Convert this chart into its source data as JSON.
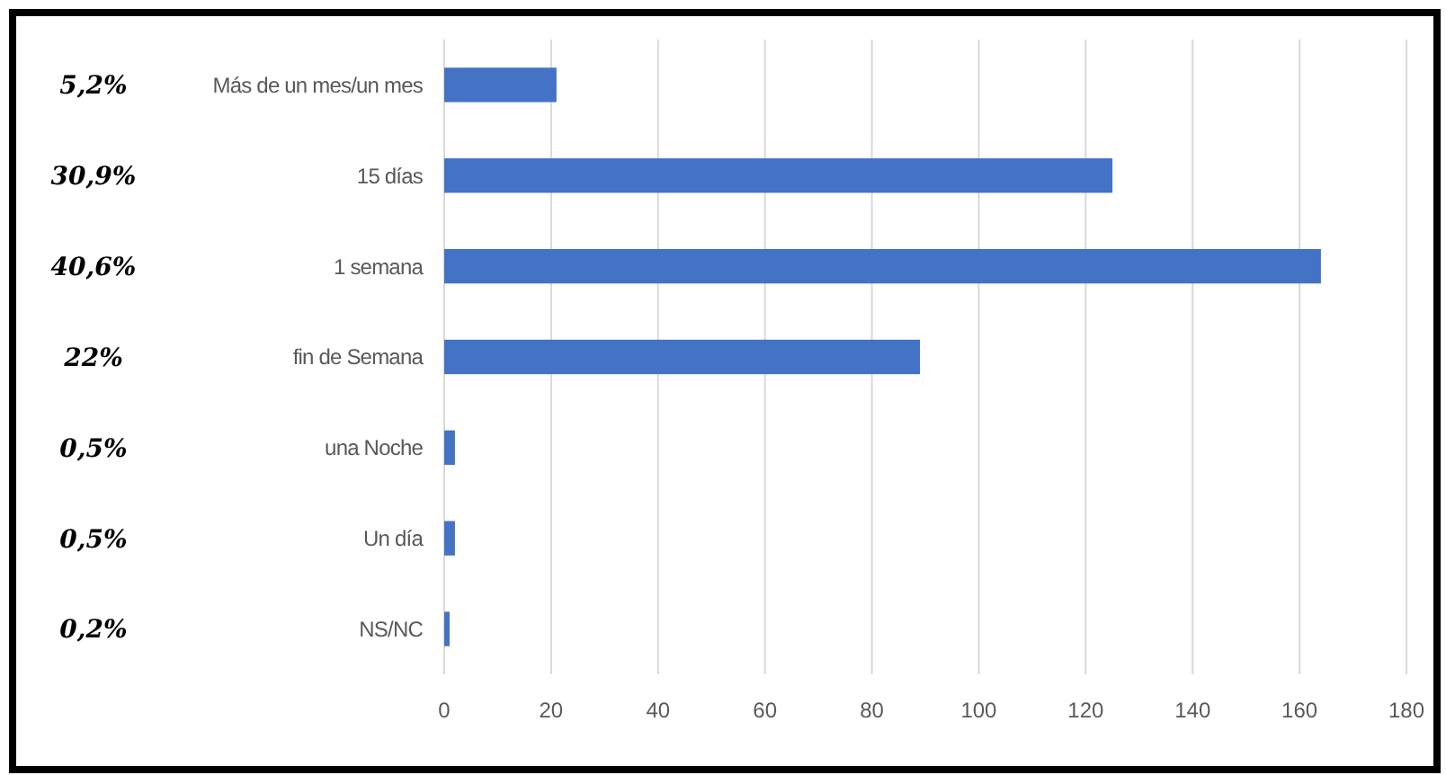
{
  "chart_data": {
    "type": "bar",
    "orientation": "horizontal",
    "categories": [
      "Más de un mes/un mes",
      "15 días",
      "1 semana",
      "fin de Semana",
      "una Noche",
      "Un día",
      "NS/NC"
    ],
    "values": [
      21,
      125,
      164,
      89,
      2,
      2,
      1
    ],
    "color": "#4472c4",
    "xlim": [
      0,
      180
    ],
    "xticks": [
      0,
      20,
      40,
      60,
      80,
      100,
      120,
      140,
      160,
      180
    ],
    "grid": "x",
    "annotations": [
      "5,2%",
      "30,9%",
      "40,6%",
      "22%",
      "0,5%",
      "0,5%",
      "0,2%"
    ]
  }
}
